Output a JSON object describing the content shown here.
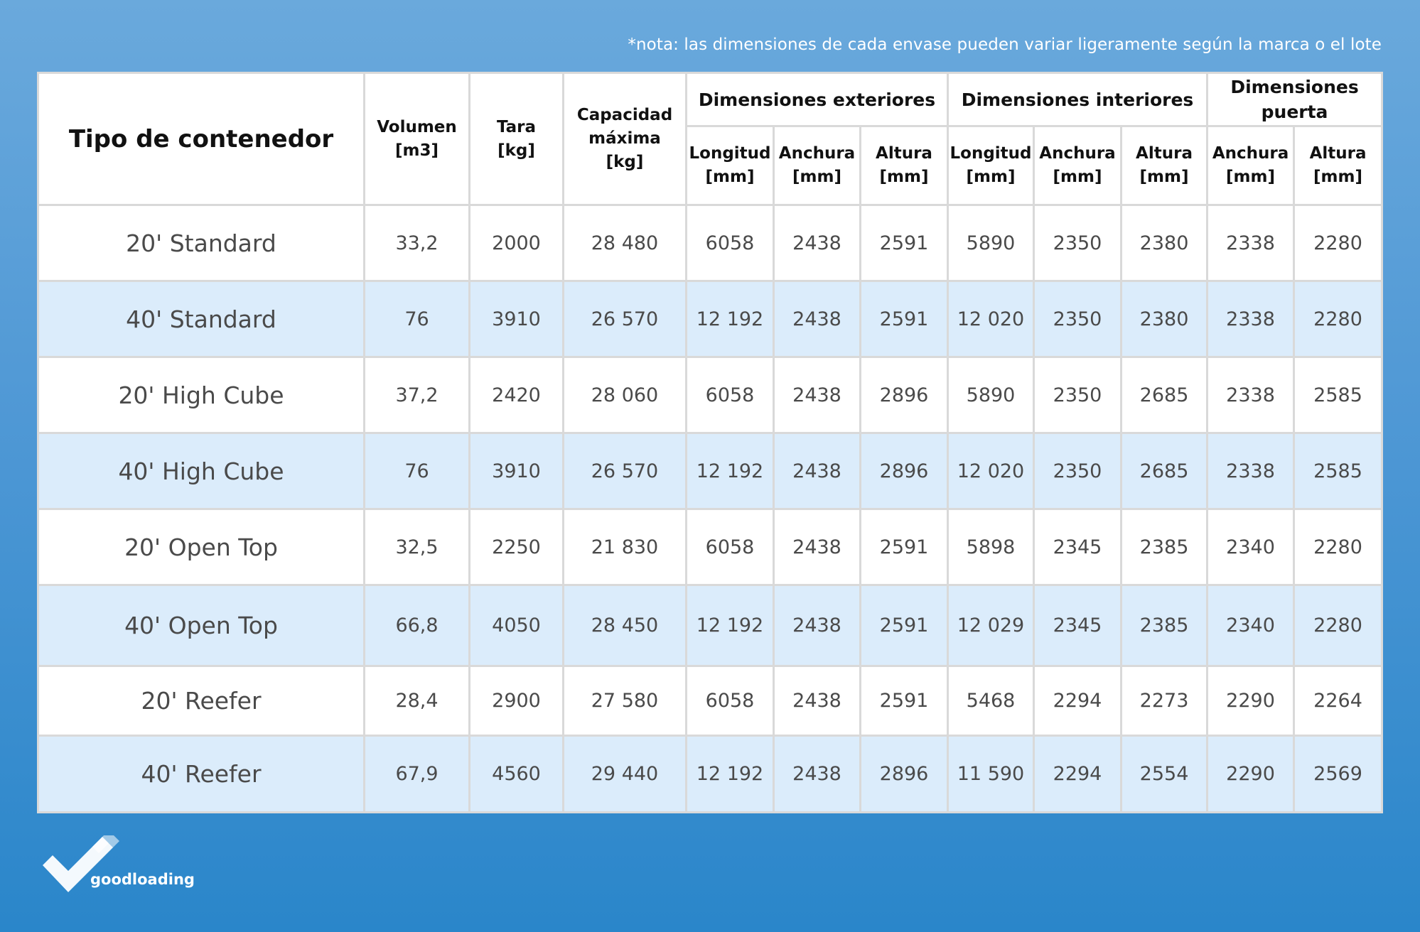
{
  "note": "*nota: las dimensiones de cada envase pueden variar ligeramente según la marca o el lote",
  "table": {
    "title_header": "Tipo de contenedor",
    "volume_header": [
      "Volumen",
      "[m3]"
    ],
    "tara_header": [
      "Tara",
      "[kg]"
    ],
    "capacity_header": [
      "Capacidad",
      "máxima",
      "[kg]"
    ],
    "groups": {
      "exterior": "Dimensiones exteriores",
      "interior": "Dimensiones interiores",
      "door": [
        "Dimensiones",
        "puerta"
      ]
    },
    "sub": {
      "longitud": [
        "Longitud",
        "[mm]"
      ],
      "anchura": [
        "Anchura",
        "[mm]"
      ],
      "altura": [
        "Altura",
        "[mm]"
      ]
    },
    "rows": [
      {
        "name": "20' Standard",
        "vol": "33,2",
        "tara": "2000",
        "cap": "28 480",
        "ext_l": "6058",
        "ext_w": "2438",
        "ext_h": "2591",
        "int_l": "5890",
        "int_w": "2350",
        "int_h": "2380",
        "door_w": "2338",
        "door_h": "2280"
      },
      {
        "name": "40' Standard",
        "vol": "76",
        "tara": "3910",
        "cap": "26 570",
        "ext_l": "12 192",
        "ext_w": "2438",
        "ext_h": "2591",
        "int_l": "12 020",
        "int_w": "2350",
        "int_h": "2380",
        "door_w": "2338",
        "door_h": "2280"
      },
      {
        "name": "20' High Cube",
        "vol": "37,2",
        "tara": "2420",
        "cap": "28 060",
        "ext_l": "6058",
        "ext_w": "2438",
        "ext_h": "2896",
        "int_l": "5890",
        "int_w": "2350",
        "int_h": "2685",
        "door_w": "2338",
        "door_h": "2585"
      },
      {
        "name": "40' High Cube",
        "vol": "76",
        "tara": "3910",
        "cap": "26 570",
        "ext_l": "12 192",
        "ext_w": "2438",
        "ext_h": "2896",
        "int_l": "12 020",
        "int_w": "2350",
        "int_h": "2685",
        "door_w": "2338",
        "door_h": "2585"
      },
      {
        "name": "20' Open Top",
        "vol": "32,5",
        "tara": "2250",
        "cap": "21 830",
        "ext_l": "6058",
        "ext_w": "2438",
        "ext_h": "2591",
        "int_l": "5898",
        "int_w": "2345",
        "int_h": "2385",
        "door_w": "2340",
        "door_h": "2280"
      },
      {
        "name": "40' Open Top",
        "vol": "66,8",
        "tara": "4050",
        "cap": "28 450",
        "ext_l": "12 192",
        "ext_w": "2438",
        "ext_h": "2591",
        "int_l": "12 029",
        "int_w": "2345",
        "int_h": "2385",
        "door_w": "2340",
        "door_h": "2280"
      },
      {
        "name": "20' Reefer",
        "vol": "28,4",
        "tara": "2900",
        "cap": "27 580",
        "ext_l": "6058",
        "ext_w": "2438",
        "ext_h": "2591",
        "int_l": "5468",
        "int_w": "2294",
        "int_h": "2273",
        "door_w": "2290",
        "door_h": "2264"
      },
      {
        "name": "40' Reefer",
        "vol": "67,9",
        "tara": "4560",
        "cap": "29 440",
        "ext_l": "12 192",
        "ext_w": "2438",
        "ext_h": "2896",
        "int_l": "11 590",
        "int_w": "2294",
        "int_h": "2554",
        "door_w": "2290",
        "door_h": "2569"
      }
    ]
  },
  "brand": {
    "name": "goodloading",
    "logo": "checkmark-logo-icon"
  }
}
